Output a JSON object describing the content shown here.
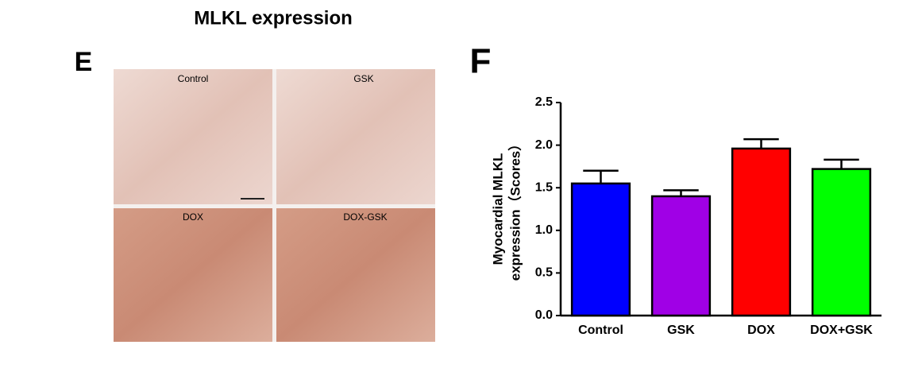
{
  "title": "MLKL expression",
  "image_panel": {
    "label": "E",
    "panels": [
      "Control",
      "GSK",
      "DOX",
      "DOX-GSK"
    ]
  },
  "chart_data": {
    "type": "bar",
    "panel_label": "F",
    "y_label": [
      "Myocardial MLKL",
      "expression（Scores）"
    ],
    "categories": [
      "Control",
      "GSK",
      "DOX",
      "DOX+GSK"
    ],
    "values": [
      1.55,
      1.4,
      1.96,
      1.72
    ],
    "errors": [
      0.15,
      0.07,
      0.11,
      0.11
    ],
    "colors": [
      "#0000ff",
      "#a000e6",
      "#ff0000",
      "#00ff00"
    ],
    "ylim": [
      0,
      2.5
    ],
    "yticks": [
      {
        "value": 0,
        "label": "0.0"
      },
      0.5,
      {
        "value": 1,
        "label": "1.0"
      },
      1.5,
      {
        "value": 2,
        "label": "2.0"
      },
      2.5
    ]
  }
}
